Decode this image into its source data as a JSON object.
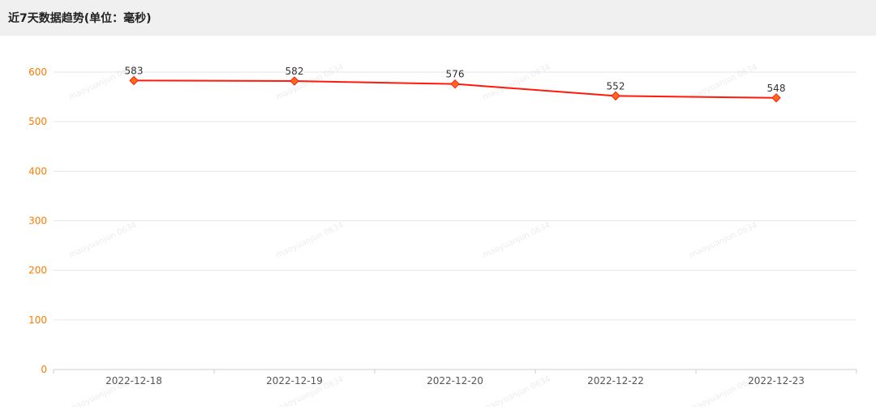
{
  "header": {
    "title": "近7天数据趋势(单位：毫秒)"
  },
  "watermark": {
    "text": "maoyuanjun 0634"
  },
  "colors": {
    "line": "#ff1a0a",
    "marker": "#ff6a1a",
    "y_tick": "#ff7a00",
    "x_tick": "#555555",
    "grid": "#e6e6e6",
    "label": "#333333"
  },
  "chart_data": {
    "type": "line",
    "title": "近7天数据趋势(单位：毫秒)",
    "xlabel": "",
    "ylabel": "",
    "categories": [
      "2022-12-18",
      "2022-12-19",
      "2022-12-20",
      "2022-12-22",
      "2022-12-23"
    ],
    "series": [
      {
        "values": [
          583,
          582,
          576,
          552,
          548
        ]
      }
    ],
    "ylim": [
      0,
      600
    ],
    "y_ticks": [
      0,
      100,
      200,
      300,
      400,
      500,
      600
    ],
    "grid": true,
    "legend": "none",
    "data_labels": true,
    "marker": "diamond"
  }
}
